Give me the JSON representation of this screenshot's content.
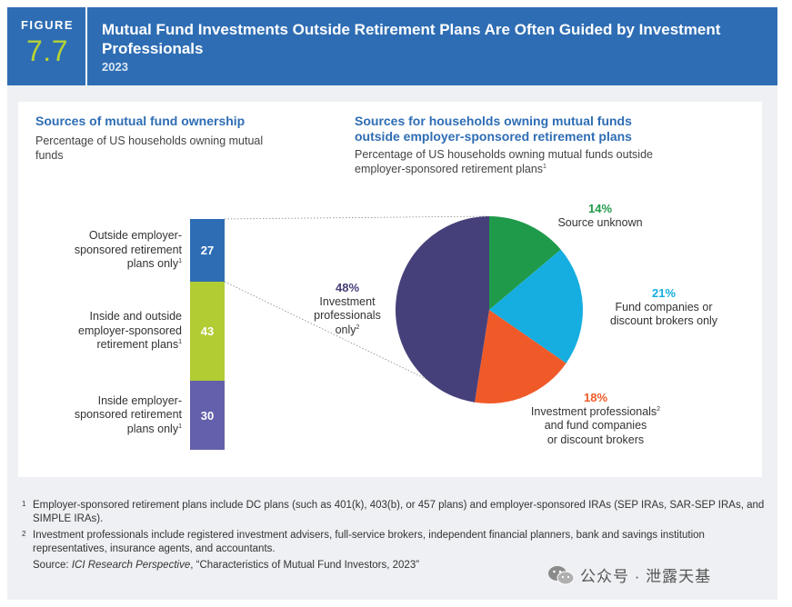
{
  "header": {
    "figure_label": "FIGURE",
    "figure_number": "7.7",
    "title": "Mutual Fund Investments Outside Retirement Plans Are Often Guided by Investment Professionals",
    "year": "2023"
  },
  "left": {
    "title": "Sources of mutual fund ownership",
    "subtitle": "Percentage of US households owning mutual funds"
  },
  "right": {
    "title": "Sources for households owning mutual funds outside employer-sponsored retirement plans",
    "subtitle": "Percentage of US households owning mutual funds outside employer-sponsored retirement plans",
    "subtitle_sup": "1"
  },
  "chart_data": [
    {
      "type": "bar",
      "stacked": true,
      "categories": [
        "Outside employer-sponsored retirement plans only",
        "Inside and outside employer-sponsored retirement plans",
        "Inside employer-sponsored retirement plans only"
      ],
      "values": [
        27,
        43,
        30
      ],
      "value_labels": [
        "27",
        "43",
        "30"
      ],
      "label_lines": [
        [
          "Outside employer-",
          "sponsored retirement",
          "plans only"
        ],
        [
          "Inside and outside",
          "employer-sponsored",
          "retirement plans"
        ],
        [
          "Inside employer-",
          "sponsored retirement",
          "plans only"
        ]
      ],
      "label_sup": "1",
      "colors": [
        "#2e6db4",
        "#b2cc34",
        "#6460ab"
      ]
    },
    {
      "type": "pie",
      "slices": [
        {
          "label": "Source unknown",
          "value": 14,
          "pct": "14%",
          "color": "#1f9a4a",
          "lines": [
            "Source unknown"
          ]
        },
        {
          "label": "Fund companies or discount brokers only",
          "value": 21,
          "pct": "21%",
          "color": "#16aee0",
          "lines": [
            "Fund companies or",
            "discount brokers only"
          ]
        },
        {
          "label": "Investment professionals and fund companies or discount brokers",
          "value": 18,
          "pct": "18%",
          "color": "#f05a28",
          "lines": [
            "Investment professionals",
            "and fund companies",
            "or discount brokers"
          ],
          "sup_line": 0,
          "sup": "2"
        },
        {
          "label": "Investment professionals only",
          "value": 48,
          "pct": "48%",
          "color": "#46407a",
          "lines": [
            "Investment",
            "professionals",
            "only"
          ],
          "sup_line": 2,
          "sup": "2"
        }
      ]
    }
  ],
  "footnotes": [
    {
      "marker": "1",
      "text": "Employer-sponsored retirement plans include DC plans (such as 401(k), 403(b), or 457 plans) and employer-sponsored IRAs (SEP IRAs, SAR-SEP IRAs, and SIMPLE IRAs)."
    },
    {
      "marker": "2",
      "text": "Investment professionals include registered investment advisers, full-service brokers, independent financial planners, bank and savings institution representatives, insurance agents, and accountants."
    }
  ],
  "source": {
    "prefix": "Source: ",
    "publication": "ICI Research Perspective",
    "suffix": ", “Characteristics of Mutual Fund Investors, 2023”"
  },
  "watermark": {
    "icon": "wechat-icon",
    "text": "公众号 · 泄露天基"
  }
}
